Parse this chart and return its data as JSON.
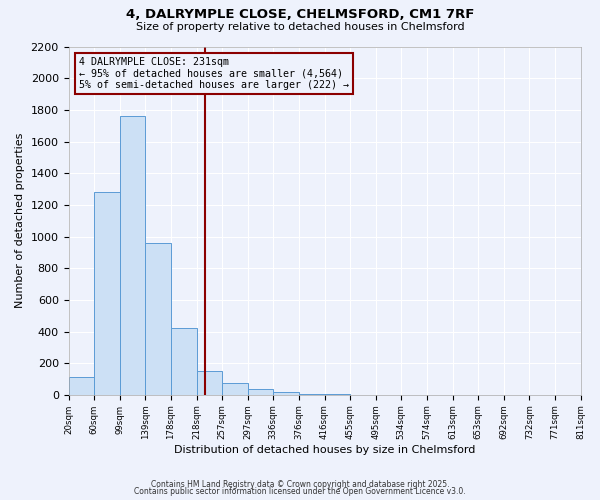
{
  "title1": "4, DALRYMPLE CLOSE, CHELMSFORD, CM1 7RF",
  "title2": "Size of property relative to detached houses in Chelmsford",
  "xlabel": "Distribution of detached houses by size in Chelmsford",
  "ylabel": "Number of detached properties",
  "bar_heights": [
    110,
    1280,
    1760,
    960,
    420,
    150,
    75,
    40,
    20,
    5,
    3,
    2,
    1,
    1,
    0,
    0,
    0,
    0,
    0,
    0
  ],
  "bin_labels": [
    "20sqm",
    "60sqm",
    "99sqm",
    "139sqm",
    "178sqm",
    "218sqm",
    "257sqm",
    "297sqm",
    "336sqm",
    "376sqm",
    "416sqm",
    "455sqm",
    "495sqm",
    "534sqm",
    "574sqm",
    "613sqm",
    "653sqm",
    "692sqm",
    "732sqm",
    "771sqm",
    "811sqm"
  ],
  "bar_color": "#cce0f5",
  "bar_edgecolor": "#5b9bd5",
  "vline_x": 5.6,
  "vline_color": "#8b0000",
  "annotation_title": "4 DALRYMPLE CLOSE: 231sqm",
  "annotation_line1": "← 95% of detached houses are smaller (4,564)",
  "annotation_line2": "5% of semi-detached houses are larger (222) →",
  "annotation_box_color": "#8b0000",
  "ylim": [
    0,
    2200
  ],
  "yticks": [
    0,
    200,
    400,
    600,
    800,
    1000,
    1200,
    1400,
    1600,
    1800,
    2000,
    2200
  ],
  "background_color": "#eef2fc",
  "grid_color": "#ffffff",
  "footnote1": "Contains HM Land Registry data © Crown copyright and database right 2025.",
  "footnote2": "Contains public sector information licensed under the Open Government Licence v3.0."
}
